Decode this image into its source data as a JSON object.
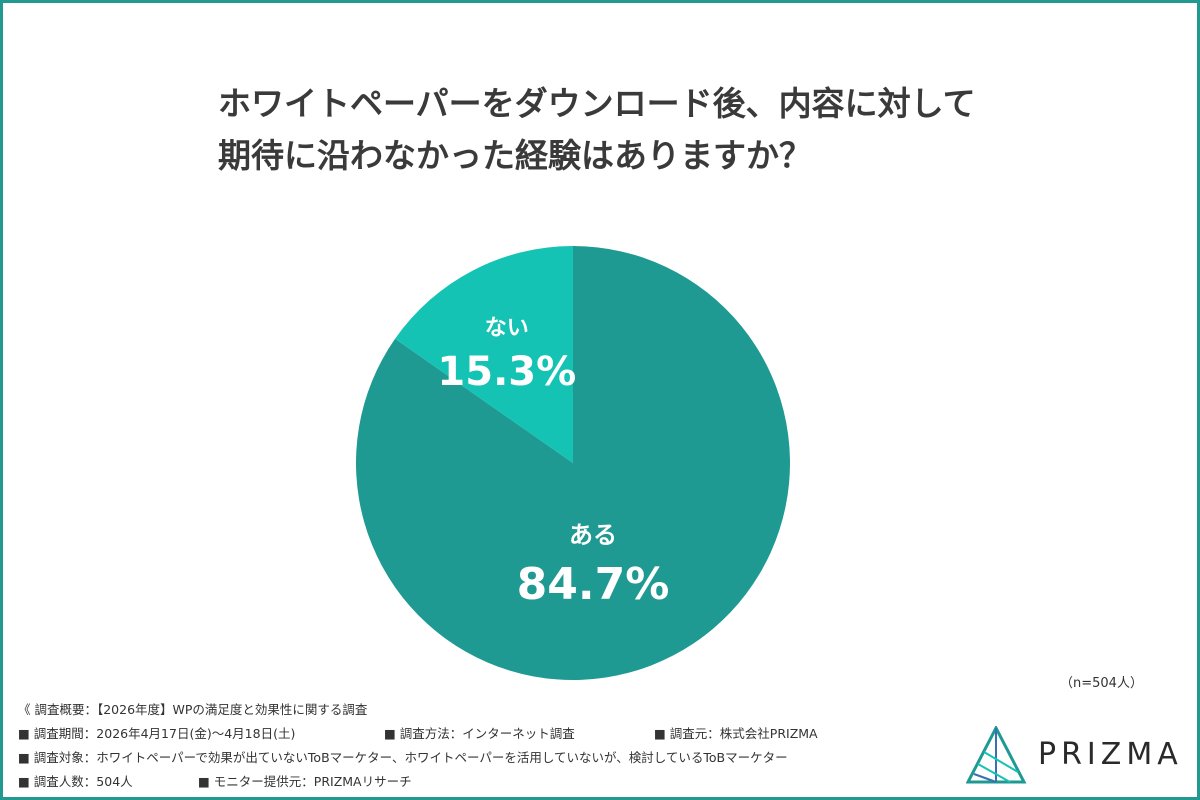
{
  "title_lines": [
    "ホワイトペーパーをダウンロード後、内容に対して",
    "期待に沿わなかった経験はありますか？"
  ],
  "chart_data": {
    "type": "pie",
    "slices": [
      {
        "label": "ある",
        "value": 84.7,
        "display": "84.7%",
        "color": "#1e9a93"
      },
      {
        "label": "ない",
        "value": 15.3,
        "display": "15.3%",
        "color": "#15c3b4"
      }
    ]
  },
  "sample_size": "（n=504人）",
  "survey": {
    "overview": "《 調査概要：【2026年度】WPの満足度と効果性に関する調査",
    "period": "■ 調査期間：2026年4月17日(金)～4月18日(土)",
    "method": "■ 調査方法：インターネット調査",
    "source": "■ 調査元：株式会社PRIZMA",
    "target": "■ 調査対象：ホワイトペーパーで効果が出ていないToBマーケター、ホワイトペーパーを活用していないが、検討しているToBマーケター",
    "count": "■ 調査人数：504人",
    "monitor": "■ モニター提供元：PRIZMAリサーチ"
  },
  "logo": {
    "text": "PRIZMA",
    "icon": "prism-logo-icon"
  }
}
